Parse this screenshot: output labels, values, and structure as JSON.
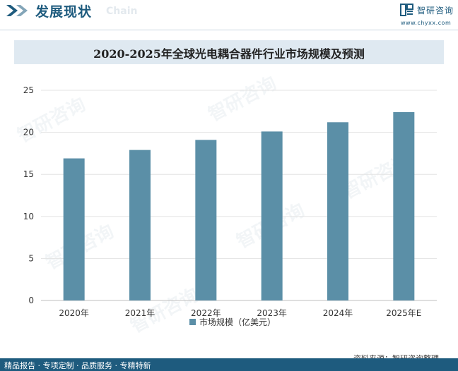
{
  "header": {
    "title": "发展现状",
    "subtitle": "Chain"
  },
  "logo": {
    "name": "智研咨询",
    "url": "www.chyxx.com"
  },
  "watermark_text": "智研咨询",
  "footer": {
    "tagline": "精品报告 · 专项定制 · 品质服务 · 专精特新"
  },
  "source": "资料来源：智研咨询整理",
  "colors": {
    "brand": "#1e5b7e",
    "bar": "#5b8fa7",
    "title_band": "#dfe9f1"
  },
  "chart_data": {
    "type": "bar",
    "title": "2020-2025年全球光电耦合器件行业市场规模及预测",
    "categories": [
      "2020年",
      "2021年",
      "2022年",
      "2023年",
      "2024年",
      "2025年E"
    ],
    "series": [
      {
        "name": "市场规模（亿美元）",
        "values": [
          16.9,
          17.9,
          19.1,
          20.1,
          21.2,
          22.4
        ]
      }
    ],
    "ylim": [
      0,
      25
    ],
    "yticks": [
      0,
      5,
      10,
      15,
      20,
      25
    ],
    "grid": true,
    "xlabel": "",
    "ylabel": "",
    "legend_position": "bottom"
  }
}
